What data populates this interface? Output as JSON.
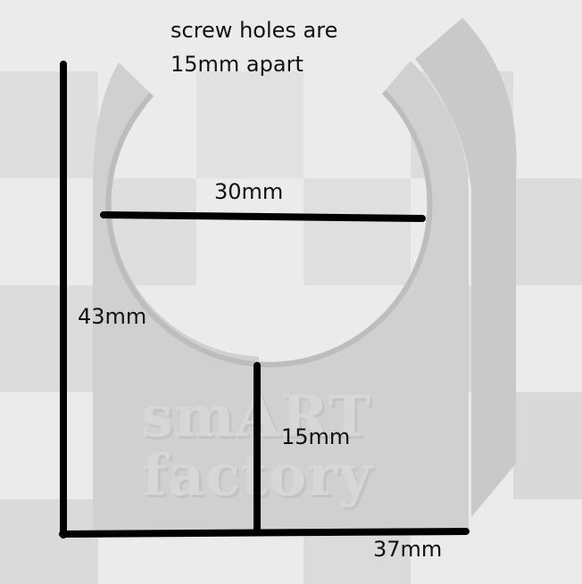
{
  "note": {
    "line1": "screw holes are",
    "line2": "15mm apart"
  },
  "dimensions": {
    "width_label": "30mm",
    "height_label": "43mm",
    "hole_spacing_label": "15mm",
    "base_label": "37mm"
  },
  "watermark": {
    "line1": "smART",
    "line2": "factory"
  },
  "colors": {
    "background_light": "#ebebeb",
    "background_checker": "#dcdcdc",
    "part": "#d0d0d0",
    "part_shadow": "#b9b9b9",
    "dimension_line": "#000000"
  }
}
